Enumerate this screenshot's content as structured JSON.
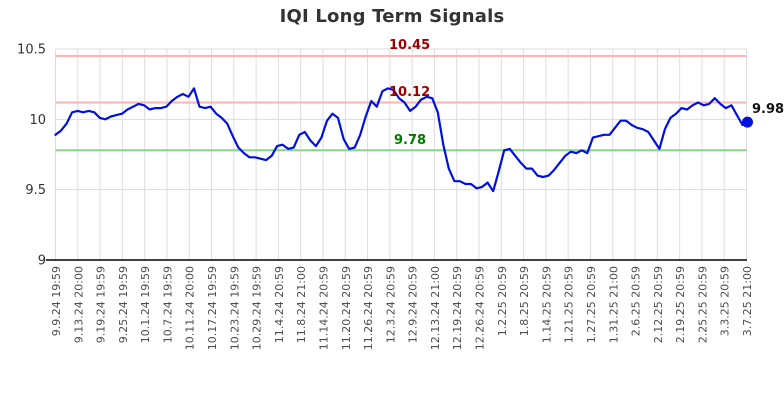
{
  "chart_data": {
    "type": "line",
    "title": "IQI Long Term Signals",
    "xlabel": "",
    "ylabel": "",
    "ylim": [
      9,
      10.5
    ],
    "grid": true,
    "x_tick_labels": [
      "9.9.24 19:59",
      "9.13.24 20:00",
      "9.19.24 19:59",
      "9.25.24 19:59",
      "10.1.24 19:59",
      "10.7.24 19:59",
      "10.11.24 20:00",
      "10.17.24 19:59",
      "10.23.24 19:59",
      "10.29.24 19:59",
      "11.4.24 20:59",
      "11.8.24 21:00",
      "11.14.24 20:59",
      "11.20.24 20:59",
      "11.26.24 20:59",
      "12.3.24 20:59",
      "12.9.24 20:59",
      "12.13.24 21:00",
      "12.19.24 20:59",
      "12.26.24 20:59",
      "1.2.25 20:59",
      "1.8.25 20:59",
      "1.14.25 20:59",
      "1.21.25 20:59",
      "1.27.25 20:59",
      "1.31.25 21:00",
      "2.6.25 20:59",
      "2.12.25 20:59",
      "2.19.25 20:59",
      "2.25.25 20:59",
      "3.3.25 20:59",
      "3.7.25 21:00"
    ],
    "y_ticks": [
      10.5,
      10,
      9.5,
      9
    ],
    "y_tick_labels": [
      "10.5",
      "10",
      "9.5",
      "9"
    ],
    "series": [
      {
        "name": "IQI",
        "color": "#0011dd",
        "values": [
          9.89,
          9.92,
          9.97,
          10.05,
          10.06,
          10.05,
          10.06,
          10.05,
          10.01,
          10.0,
          10.02,
          10.03,
          10.04,
          10.07,
          10.09,
          10.11,
          10.1,
          10.07,
          10.08,
          10.08,
          10.09,
          10.13,
          10.16,
          10.18,
          10.16,
          10.22,
          10.09,
          10.08,
          10.09,
          10.04,
          10.01,
          9.97,
          9.88,
          9.8,
          9.76,
          9.73,
          9.73,
          9.72,
          9.71,
          9.74,
          9.81,
          9.82,
          9.79,
          9.8,
          9.89,
          9.91,
          9.85,
          9.81,
          9.87,
          9.99,
          10.04,
          10.01,
          9.86,
          9.79,
          9.8,
          9.89,
          10.02,
          10.13,
          10.09,
          10.2,
          10.22,
          10.21,
          10.15,
          10.12,
          10.06,
          10.09,
          10.14,
          10.16,
          10.15,
          10.05,
          9.82,
          9.65,
          9.56,
          9.56,
          9.54,
          9.54,
          9.51,
          9.52,
          9.55,
          9.49,
          9.63,
          9.78,
          9.79,
          9.74,
          9.69,
          9.65,
          9.65,
          9.6,
          9.59,
          9.6,
          9.64,
          9.69,
          9.74,
          9.77,
          9.76,
          9.78,
          9.76,
          9.87,
          9.88,
          9.89,
          9.89,
          9.94,
          9.99,
          9.99,
          9.96,
          9.94,
          9.93,
          9.91,
          9.85,
          9.79,
          9.93,
          10.01,
          10.04,
          10.08,
          10.07,
          10.1,
          10.12,
          10.1,
          10.11,
          10.15,
          10.11,
          10.08,
          10.1,
          10.03,
          9.96,
          9.98
        ]
      }
    ],
    "reference_lines": [
      {
        "label": "10.45",
        "value": 10.45,
        "line_color": "#ffb3b3",
        "label_color": "#990000"
      },
      {
        "label": "10.12",
        "value": 10.12,
        "line_color": "#ffb3b3",
        "label_color": "#990000"
      },
      {
        "label": "9.78",
        "value": 9.78,
        "line_color": "#82dc82",
        "label_color": "#007700"
      }
    ],
    "last_point": {
      "label": "9.98",
      "value": 9.98,
      "color": "#0011dd"
    },
    "colors": {
      "background": "#ffffff",
      "grid": "#dddddd",
      "axis": "#000000",
      "tick_label": "#4d4d4d",
      "title": "#333333"
    },
    "legend": "none"
  }
}
